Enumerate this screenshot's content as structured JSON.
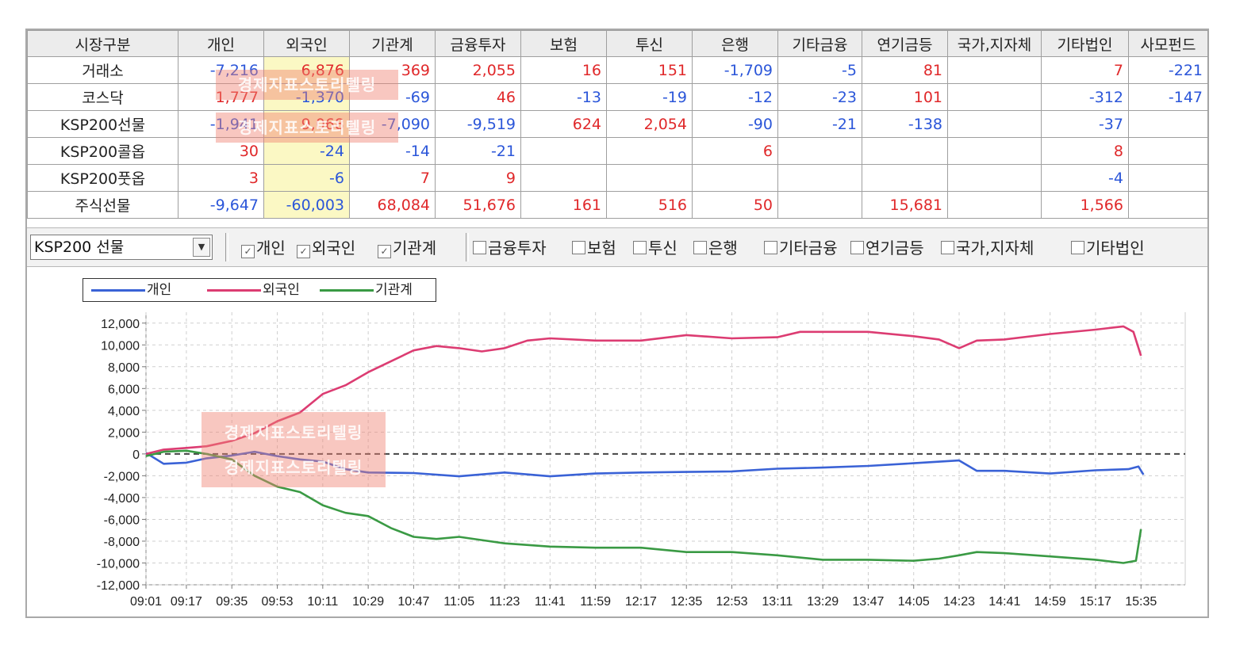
{
  "table": {
    "headers": [
      "시장구분",
      "개인",
      "외국인",
      "기관계",
      "금융투자",
      "보험",
      "투신",
      "은행",
      "기타금융",
      "연기금등",
      "국가,지자체",
      "기타법인",
      "사모펀드"
    ],
    "rows": [
      {
        "label": "거래소",
        "cells": [
          "-7,216",
          "6,876",
          "369",
          "2,055",
          "16",
          "151",
          "-1,709",
          "-5",
          "81",
          "",
          "7",
          "-221"
        ]
      },
      {
        "label": "코스닥",
        "cells": [
          "1,777",
          "-1,370",
          "-69",
          "46",
          "-13",
          "-19",
          "-12",
          "-23",
          "101",
          "",
          "-312",
          "-147"
        ]
      },
      {
        "label": "KSP200선물",
        "cells": [
          "-1,941",
          "9,068",
          "-7,090",
          "-9,519",
          "624",
          "2,054",
          "-90",
          "-21",
          "-138",
          "",
          "-37",
          ""
        ]
      },
      {
        "label": "KSP200콜옵",
        "cells": [
          "30",
          "-24",
          "-14",
          "-21",
          "",
          "",
          "6",
          "",
          "",
          "",
          "8",
          ""
        ]
      },
      {
        "label": "KSP200풋옵",
        "cells": [
          "3",
          "-6",
          "7",
          "9",
          "",
          "",
          "",
          "",
          "",
          "",
          "-4",
          ""
        ]
      },
      {
        "label": "주식선물",
        "cells": [
          "-9,647",
          "-60,003",
          "68,084",
          "51,676",
          "161",
          "516",
          "50",
          "",
          "15,681",
          "",
          "1,566",
          ""
        ]
      }
    ]
  },
  "controls": {
    "select_value": "KSP200 선물",
    "checkboxes": [
      {
        "label": "개인",
        "checked": true
      },
      {
        "label": "외국인",
        "checked": true
      },
      {
        "label": "기관계",
        "checked": true
      },
      {
        "label": "금융투자",
        "checked": false
      },
      {
        "label": "보험",
        "checked": false
      },
      {
        "label": "투신",
        "checked": false
      },
      {
        "label": "은행",
        "checked": false
      },
      {
        "label": "기타금융",
        "checked": false
      },
      {
        "label": "연기금등",
        "checked": false
      },
      {
        "label": "국가,지자체",
        "checked": false
      },
      {
        "label": "기타법인",
        "checked": false
      }
    ]
  },
  "watermark": "경제지표스토리텔링",
  "colors": {
    "individual": "#3a62d6",
    "foreign": "#dc3c72",
    "institution": "#3a9a44",
    "positive": "#e0282a",
    "negative": "#2b56d9",
    "foreign_col_bg": "#fbf8c4"
  },
  "chart_data": {
    "type": "line",
    "legend_position": "top-left",
    "grid": true,
    "x_ticks": [
      "09:01",
      "09:17",
      "09:35",
      "09:53",
      "10:11",
      "10:29",
      "10:47",
      "11:05",
      "11:23",
      "11:41",
      "11:59",
      "12:17",
      "12:35",
      "12:53",
      "13:11",
      "13:29",
      "13:47",
      "14:05",
      "14:23",
      "14:41",
      "14:59",
      "15:17",
      "15:35"
    ],
    "ylim": [
      -12000,
      13000
    ],
    "y_ticks": [
      12000,
      10000,
      8000,
      6000,
      4000,
      2000,
      0,
      -2000,
      -4000,
      -6000,
      -8000,
      -10000,
      -12000
    ],
    "y_tick_labels": [
      "12,000",
      "10,000",
      "8,000",
      "6,000",
      "4,000",
      "2,000",
      "0",
      "-2,000",
      "-4,000",
      "-6,000",
      "-8,000",
      "-10,000",
      "-12,000"
    ],
    "series": [
      {
        "name": "개인",
        "color": "#3a62d6",
        "points": [
          [
            "09:01",
            100
          ],
          [
            "09:08",
            -900
          ],
          [
            "09:17",
            -800
          ],
          [
            "09:25",
            -400
          ],
          [
            "09:35",
            -150
          ],
          [
            "09:44",
            200
          ],
          [
            "09:53",
            -200
          ],
          [
            "10:02",
            -500
          ],
          [
            "10:11",
            -700
          ],
          [
            "10:20",
            -1400
          ],
          [
            "10:29",
            -1700
          ],
          [
            "10:47",
            -1750
          ],
          [
            "11:05",
            -2050
          ],
          [
            "11:23",
            -1700
          ],
          [
            "11:41",
            -2050
          ],
          [
            "11:59",
            -1800
          ],
          [
            "12:17",
            -1700
          ],
          [
            "12:35",
            -1650
          ],
          [
            "12:53",
            -1600
          ],
          [
            "13:11",
            -1350
          ],
          [
            "13:29",
            -1250
          ],
          [
            "13:47",
            -1100
          ],
          [
            "14:05",
            -850
          ],
          [
            "14:23",
            -600
          ],
          [
            "14:30",
            -1550
          ],
          [
            "14:41",
            -1550
          ],
          [
            "14:59",
            -1800
          ],
          [
            "15:17",
            -1500
          ],
          [
            "15:30",
            -1400
          ],
          [
            "15:34",
            -1150
          ],
          [
            "15:36",
            -1900
          ]
        ]
      },
      {
        "name": "외국인",
        "color": "#dc3c72",
        "points": [
          [
            "09:01",
            0
          ],
          [
            "09:08",
            400
          ],
          [
            "09:17",
            550
          ],
          [
            "09:25",
            700
          ],
          [
            "09:35",
            1200
          ],
          [
            "09:44",
            1900
          ],
          [
            "09:53",
            3000
          ],
          [
            "10:02",
            3800
          ],
          [
            "10:11",
            5500
          ],
          [
            "10:20",
            6300
          ],
          [
            "10:29",
            7500
          ],
          [
            "10:38",
            8500
          ],
          [
            "10:47",
            9500
          ],
          [
            "10:56",
            9900
          ],
          [
            "11:05",
            9700
          ],
          [
            "11:14",
            9400
          ],
          [
            "11:23",
            9700
          ],
          [
            "11:32",
            10400
          ],
          [
            "11:41",
            10600
          ],
          [
            "11:59",
            10400
          ],
          [
            "12:17",
            10400
          ],
          [
            "12:35",
            10900
          ],
          [
            "12:53",
            10600
          ],
          [
            "13:11",
            10700
          ],
          [
            "13:20",
            11200
          ],
          [
            "13:47",
            11200
          ],
          [
            "14:05",
            10800
          ],
          [
            "14:15",
            10500
          ],
          [
            "14:23",
            9700
          ],
          [
            "14:30",
            10400
          ],
          [
            "14:41",
            10500
          ],
          [
            "14:59",
            11000
          ],
          [
            "15:17",
            11400
          ],
          [
            "15:28",
            11700
          ],
          [
            "15:32",
            11200
          ],
          [
            "15:35",
            9000
          ]
        ]
      },
      {
        "name": "기관계",
        "color": "#3a9a44",
        "points": [
          [
            "09:01",
            -200
          ],
          [
            "09:08",
            200
          ],
          [
            "09:17",
            300
          ],
          [
            "09:25",
            0
          ],
          [
            "09:35",
            -500
          ],
          [
            "09:44",
            -2000
          ],
          [
            "09:53",
            -3000
          ],
          [
            "10:02",
            -3500
          ],
          [
            "10:11",
            -4700
          ],
          [
            "10:20",
            -5400
          ],
          [
            "10:29",
            -5700
          ],
          [
            "10:38",
            -6800
          ],
          [
            "10:47",
            -7600
          ],
          [
            "10:56",
            -7800
          ],
          [
            "11:05",
            -7600
          ],
          [
            "11:14",
            -7900
          ],
          [
            "11:23",
            -8200
          ],
          [
            "11:41",
            -8500
          ],
          [
            "11:59",
            -8600
          ],
          [
            "12:17",
            -8600
          ],
          [
            "12:35",
            -9000
          ],
          [
            "12:53",
            -9000
          ],
          [
            "13:11",
            -9300
          ],
          [
            "13:29",
            -9700
          ],
          [
            "13:47",
            -9700
          ],
          [
            "14:05",
            -9800
          ],
          [
            "14:15",
            -9600
          ],
          [
            "14:23",
            -9300
          ],
          [
            "14:30",
            -9000
          ],
          [
            "14:41",
            -9100
          ],
          [
            "14:59",
            -9400
          ],
          [
            "15:17",
            -9700
          ],
          [
            "15:28",
            -10000
          ],
          [
            "15:33",
            -9800
          ],
          [
            "15:35",
            -6900
          ]
        ]
      }
    ]
  }
}
